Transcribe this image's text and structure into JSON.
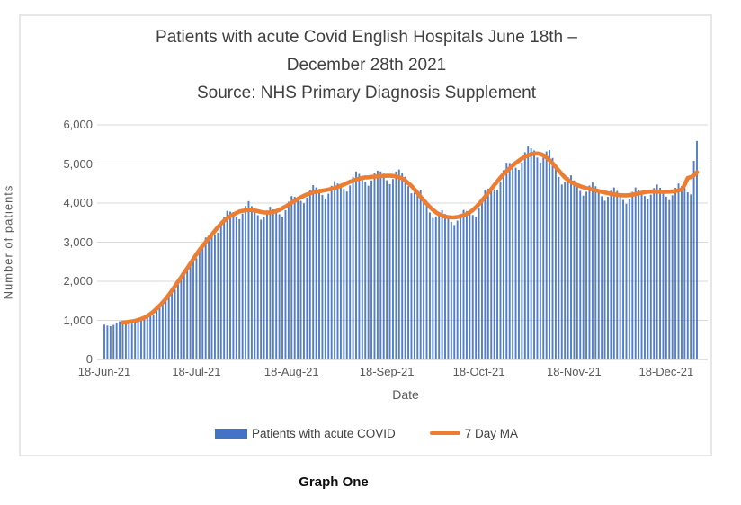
{
  "page": {
    "caption": "Graph One"
  },
  "chart_data": {
    "type": "bar",
    "title_lines": [
      "Patients with acute Covid English Hospitals June 18th –",
      "December 28th 2021",
      "Source: NHS Primary Diagnosis Supplement"
    ],
    "xlabel": "Date",
    "ylabel": "Number of patients",
    "ylim": [
      0,
      6000
    ],
    "ytick_step": 1000,
    "ytick_labels": [
      "0",
      "1,000",
      "2,000",
      "3,000",
      "4,000",
      "5,000",
      "6,000"
    ],
    "x_start_date": "18-Jun-21",
    "x_end_date": "28-Dec-21",
    "x_interval": "daily",
    "xticks": [
      {
        "day": 0,
        "label": "18-Jun-21"
      },
      {
        "day": 30,
        "label": "18-Jul-21"
      },
      {
        "day": 61,
        "label": "18-Aug-21"
      },
      {
        "day": 92,
        "label": "18-Sep-21"
      },
      {
        "day": 122,
        "label": "18-Oct-21"
      },
      {
        "day": 153,
        "label": "18-Nov-21"
      },
      {
        "day": 183,
        "label": "18-Dec-21"
      }
    ],
    "grid": "horizontal",
    "legend_position": "bottom",
    "colors": {
      "bar": "#4472C4",
      "line": "#ED7D31",
      "grid_line": "#D9D9D9",
      "axis_line": "#BFBFBF",
      "axis_text": "#595959",
      "title_text": "#404040"
    },
    "series": [
      {
        "name": "Patients with acute COVID",
        "type": "bar",
        "color": "#4472C4",
        "values": [
          890,
          865,
          850,
          885,
          940,
          975,
          975,
          965,
          935,
          915,
          940,
          1015,
          1065,
          1080,
          1115,
          1125,
          1145,
          1245,
          1365,
          1500,
          1590,
          1660,
          1700,
          1790,
          1950,
          2120,
          2290,
          2390,
          2480,
          2520,
          2590,
          2760,
          2960,
          3120,
          3170,
          3220,
          3200,
          3240,
          3420,
          3640,
          3800,
          3780,
          3770,
          3635,
          3590,
          3730,
          3925,
          4050,
          3920,
          3850,
          3690,
          3575,
          3650,
          3810,
          3905,
          3840,
          3820,
          3715,
          3655,
          3815,
          4035,
          4180,
          4160,
          4155,
          4055,
          3995,
          4140,
          4345,
          4460,
          4400,
          4360,
          4210,
          4115,
          4240,
          4440,
          4560,
          4500,
          4480,
          4360,
          4295,
          4450,
          4670,
          4810,
          4745,
          4695,
          4545,
          4445,
          4580,
          4775,
          4830,
          4810,
          4755,
          4585,
          4485,
          4615,
          4805,
          4860,
          4760,
          4675,
          4430,
          4250,
          4270,
          4345,
          4340,
          4160,
          4005,
          3760,
          3620,
          3660,
          3765,
          3815,
          3720,
          3660,
          3520,
          3440,
          3550,
          3720,
          3825,
          3795,
          3780,
          3695,
          3655,
          3865,
          4130,
          4340,
          4365,
          4410,
          4350,
          4340,
          4555,
          4840,
          5030,
          5025,
          5030,
          4905,
          4850,
          5035,
          5300,
          5455,
          5400,
          5345,
          5165,
          5040,
          5165,
          5320,
          5355,
          5155,
          4965,
          4670,
          4475,
          4535,
          4665,
          4710,
          4580,
          4495,
          4310,
          4190,
          4290,
          4450,
          4525,
          4430,
          4350,
          4175,
          4060,
          4160,
          4315,
          4400,
          4310,
          4235,
          4080,
          3980,
          4095,
          4285,
          4400,
          4345,
          4310,
          4180,
          4105,
          4215,
          4385,
          4475,
          4390,
          4325,
          4165,
          4075,
          4200,
          4390,
          4500,
          4435,
          4390,
          4275,
          4220,
          5080,
          5590
        ]
      },
      {
        "name": "7 Day MA",
        "type": "line",
        "color": "#ED7D31",
        "derived": "7-day moving average of the bar series"
      }
    ]
  }
}
